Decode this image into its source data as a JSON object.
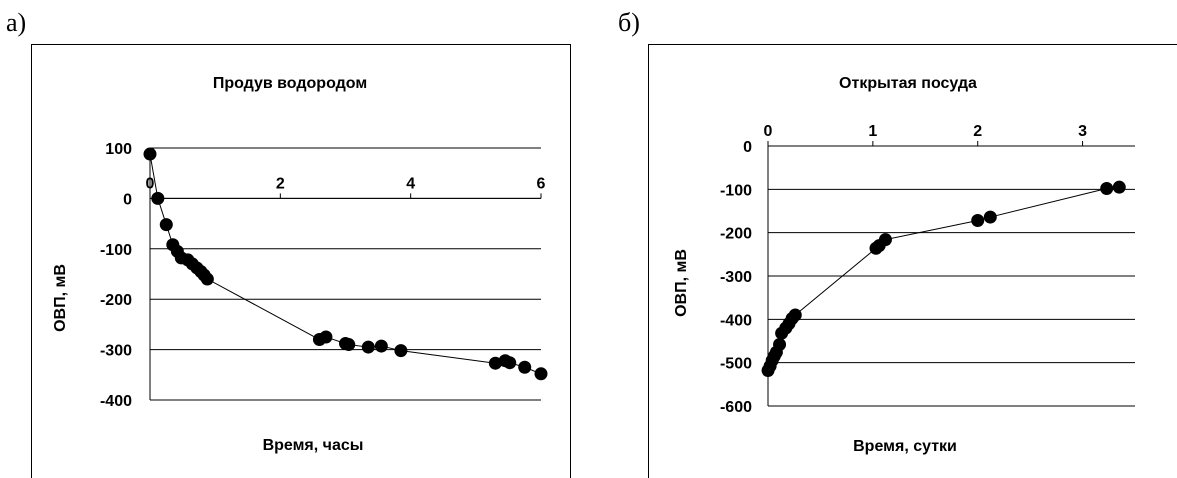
{
  "panels": [
    {
      "label": "а)"
    },
    {
      "label": "б)"
    }
  ],
  "chart_data": [
    {
      "type": "scatter",
      "title": "Продув водородом",
      "xlabel": "Время, часы",
      "ylabel": "ОВП, мВ",
      "xlim": [
        0,
        6
      ],
      "ylim": [
        -400,
        100
      ],
      "xticks": [
        0,
        2,
        4,
        6
      ],
      "xtick_labels": [
        "0",
        "2",
        "4",
        "6"
      ],
      "yticks": [
        100,
        0,
        -100,
        -200,
        -300,
        -400
      ],
      "ytick_labels": [
        "100",
        "0",
        "-100",
        "-200",
        "-300",
        "-400"
      ],
      "x_axis_at": 0,
      "grid": "horizontal",
      "connected": true,
      "x": [
        0.0,
        0.12,
        0.25,
        0.35,
        0.42,
        0.48,
        0.58,
        0.65,
        0.72,
        0.78,
        0.83,
        0.88,
        2.6,
        2.7,
        3.0,
        3.05,
        3.35,
        3.55,
        3.85,
        5.3,
        5.45,
        5.52,
        5.75,
        6.0
      ],
      "y": [
        88,
        0,
        -52,
        -92,
        -105,
        -118,
        -122,
        -130,
        -138,
        -145,
        -152,
        -160,
        -280,
        -275,
        -288,
        -290,
        -295,
        -293,
        -302,
        -327,
        -322,
        -326,
        -335,
        -348
      ]
    },
    {
      "type": "scatter",
      "title": "Открытая посуда",
      "xlabel": "Время, сутки",
      "ylabel": "ОВП, мВ",
      "xlim": [
        0,
        3.5
      ],
      "ylim": [
        -600,
        0
      ],
      "xticks": [
        0,
        1,
        2,
        3
      ],
      "xtick_labels": [
        "0",
        "1",
        "2",
        "3"
      ],
      "yticks": [
        0,
        -100,
        -200,
        -300,
        -400,
        -500,
        -600
      ],
      "ytick_labels": [
        "0",
        "-100",
        "-200",
        "-300",
        "-400",
        "-500",
        "-600"
      ],
      "x_axis_at": 0,
      "grid": "horizontal",
      "connected": true,
      "x": [
        0.0,
        0.02,
        0.04,
        0.06,
        0.08,
        0.11,
        0.13,
        0.17,
        0.2,
        0.23,
        0.26,
        1.03,
        1.06,
        1.12,
        2.0,
        2.12,
        3.23,
        3.35
      ],
      "y": [
        -518,
        -508,
        -495,
        -485,
        -476,
        -458,
        -432,
        -420,
        -410,
        -398,
        -390,
        -236,
        -230,
        -216,
        -172,
        -164,
        -98,
        -95
      ]
    }
  ]
}
